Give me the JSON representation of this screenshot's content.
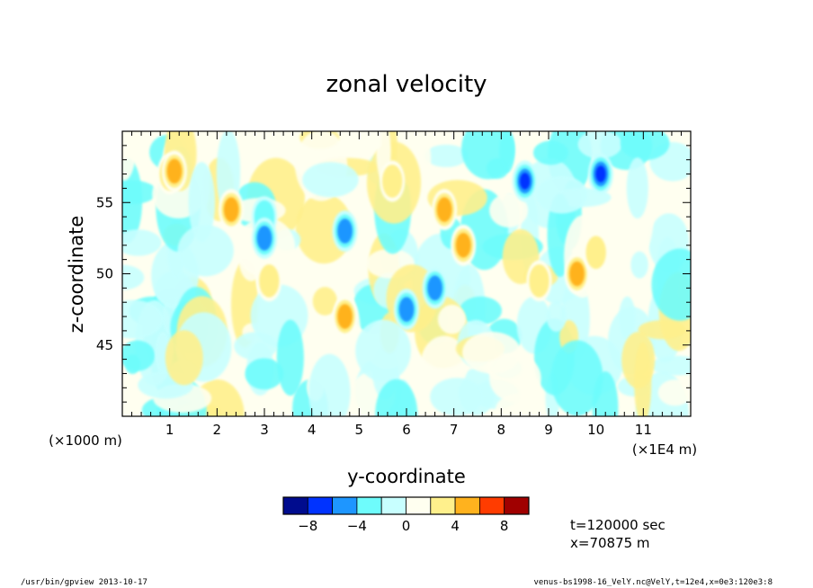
{
  "chart_data": {
    "type": "heatmap",
    "title": "zonal velocity",
    "xlabel": "y-coordinate",
    "ylabel": "z-coordinate",
    "x_unit_label": "(×1E4 m)",
    "y_unit_label": "(×1000 m)",
    "xlim": [
      0,
      12
    ],
    "ylim": [
      40,
      60
    ],
    "x_ticks": [
      1,
      2,
      3,
      4,
      5,
      6,
      7,
      8,
      9,
      10,
      11
    ],
    "x_tick_labels": [
      "1",
      "2",
      "3",
      "4",
      "5",
      "6",
      "7",
      "8",
      "9",
      "10",
      "11"
    ],
    "y_ticks": [
      45,
      50,
      55
    ],
    "y_tick_labels": [
      "45",
      "50",
      "55"
    ],
    "color_levels": [
      -10,
      -8,
      -6,
      -4,
      -2,
      0,
      2,
      4,
      6,
      8,
      10
    ],
    "colorbar_tick_values": [
      -8,
      -4,
      0,
      4,
      8
    ],
    "colorbar_tick_labels": [
      "−8",
      "−4",
      "0",
      "4",
      "8"
    ],
    "colors": [
      "#000c8e",
      "#0033ff",
      "#1e96ff",
      "#6efcfc",
      "#c8ffff",
      "#fffff0",
      "#fff08c",
      "#ffb21e",
      "#ff3c00",
      "#a00000"
    ],
    "features": [
      {
        "y": 1.0,
        "z": 57.0,
        "value": 3
      },
      {
        "y": 1.1,
        "z": 57.2,
        "value": 6
      },
      {
        "y": 2.3,
        "z": 54.5,
        "value": 5
      },
      {
        "y": 3.0,
        "z": 54.0,
        "value": -4
      },
      {
        "y": 3.0,
        "z": 52.5,
        "value": -6
      },
      {
        "y": 3.1,
        "z": 49.5,
        "value": 3
      },
      {
        "y": 4.7,
        "z": 47.0,
        "value": 5
      },
      {
        "y": 4.7,
        "z": 53.0,
        "value": -5
      },
      {
        "y": 5.7,
        "z": 56.5,
        "value": 3
      },
      {
        "y": 6.0,
        "z": 47.5,
        "value": -6
      },
      {
        "y": 6.6,
        "z": 49.0,
        "value": -5
      },
      {
        "y": 6.8,
        "z": 54.5,
        "value": 5
      },
      {
        "y": 7.2,
        "z": 52.0,
        "value": 5
      },
      {
        "y": 8.5,
        "z": 56.5,
        "value": -7
      },
      {
        "y": 10.1,
        "z": 57.0,
        "value": -8
      },
      {
        "y": 9.6,
        "z": 50.0,
        "value": 5
      },
      {
        "y": 10.0,
        "z": 51.5,
        "value": 4
      },
      {
        "y": 8.8,
        "z": 49.5,
        "value": 3
      }
    ]
  },
  "annotations": {
    "time": "t=120000 sec",
    "position": "x=70875 m"
  },
  "footer": {
    "left": "/usr/bin/gpview  2013-10-17",
    "right": "venus-bs1998-16_VelY.nc@VelY,t=12e4,x=0e3:120e3:8"
  }
}
